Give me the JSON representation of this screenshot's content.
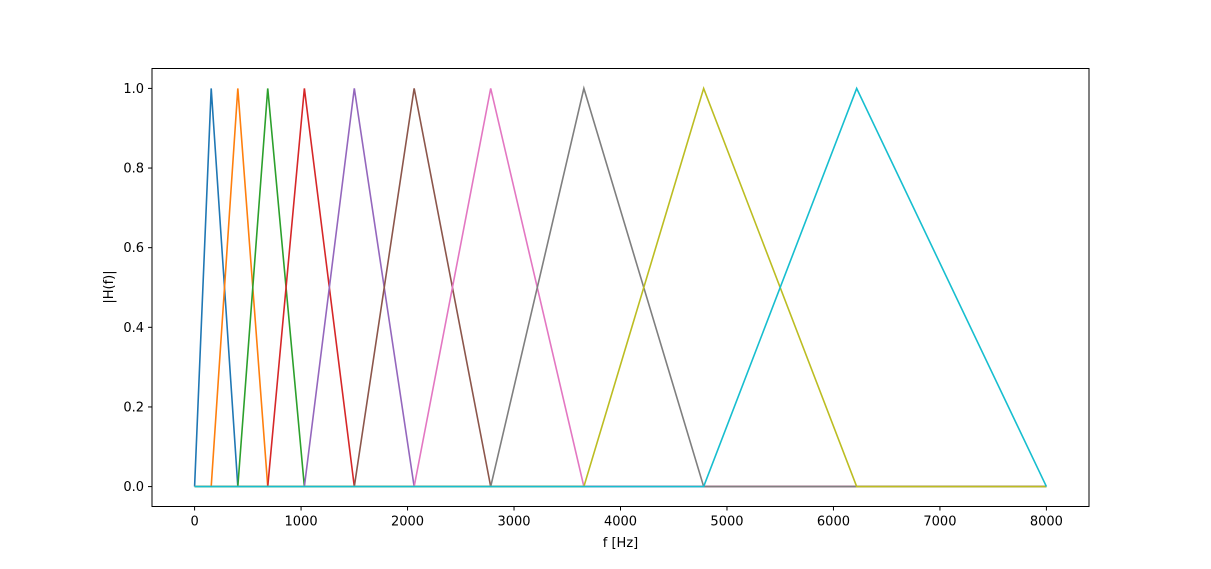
{
  "chart_data": {
    "type": "line",
    "title": "",
    "xlabel": "f [Hz]",
    "ylabel": "|H(f)|",
    "xlim": [
      -400,
      8400
    ],
    "ylim": [
      -0.05,
      1.05
    ],
    "xticks": [
      0,
      1000,
      2000,
      3000,
      4000,
      5000,
      6000,
      7000,
      8000
    ],
    "yticks": [
      0.0,
      0.2,
      0.4,
      0.6,
      0.8,
      1.0
    ],
    "xtick_labels": [
      "0",
      "1000",
      "2000",
      "3000",
      "4000",
      "5000",
      "6000",
      "7000",
      "8000"
    ],
    "ytick_labels": [
      "0.0",
      "0.2",
      "0.4",
      "0.6",
      "0.8",
      "1.0"
    ],
    "grid": false,
    "legend": "none",
    "freq_range": [
      0,
      8000
    ],
    "series": [
      {
        "color": "#1f77b4",
        "points": [
          [
            0,
            0
          ],
          [
            156,
            1
          ],
          [
            406,
            0
          ],
          [
            8000,
            0
          ]
        ]
      },
      {
        "color": "#ff7f0e",
        "points": [
          [
            0,
            0
          ],
          [
            156,
            0
          ],
          [
            406,
            1
          ],
          [
            687,
            0
          ],
          [
            8000,
            0
          ]
        ]
      },
      {
        "color": "#2ca02c",
        "points": [
          [
            0,
            0
          ],
          [
            406,
            0
          ],
          [
            687,
            1
          ],
          [
            1031,
            0
          ],
          [
            8000,
            0
          ]
        ]
      },
      {
        "color": "#d62728",
        "points": [
          [
            0,
            0
          ],
          [
            687,
            0
          ],
          [
            1031,
            1
          ],
          [
            1500,
            0
          ],
          [
            8000,
            0
          ]
        ]
      },
      {
        "color": "#9467bd",
        "points": [
          [
            0,
            0
          ],
          [
            1031,
            0
          ],
          [
            1500,
            1
          ],
          [
            2062,
            0
          ],
          [
            8000,
            0
          ]
        ]
      },
      {
        "color": "#8c564b",
        "points": [
          [
            0,
            0
          ],
          [
            1500,
            0
          ],
          [
            2062,
            1
          ],
          [
            2781,
            0
          ],
          [
            8000,
            0
          ]
        ]
      },
      {
        "color": "#e377c2",
        "points": [
          [
            0,
            0
          ],
          [
            2062,
            0
          ],
          [
            2781,
            1
          ],
          [
            3656,
            0
          ],
          [
            8000,
            0
          ]
        ]
      },
      {
        "color": "#7f7f7f",
        "points": [
          [
            0,
            0
          ],
          [
            2781,
            0
          ],
          [
            3656,
            1
          ],
          [
            4781,
            0
          ],
          [
            8000,
            0
          ]
        ]
      },
      {
        "color": "#bcbd22",
        "points": [
          [
            0,
            0
          ],
          [
            3656,
            0
          ],
          [
            4781,
            1
          ],
          [
            6218,
            0
          ],
          [
            8000,
            0
          ]
        ]
      },
      {
        "color": "#17becf",
        "points": [
          [
            0,
            0
          ],
          [
            4781,
            0
          ],
          [
            6218,
            1
          ],
          [
            8000,
            0
          ]
        ]
      }
    ]
  }
}
